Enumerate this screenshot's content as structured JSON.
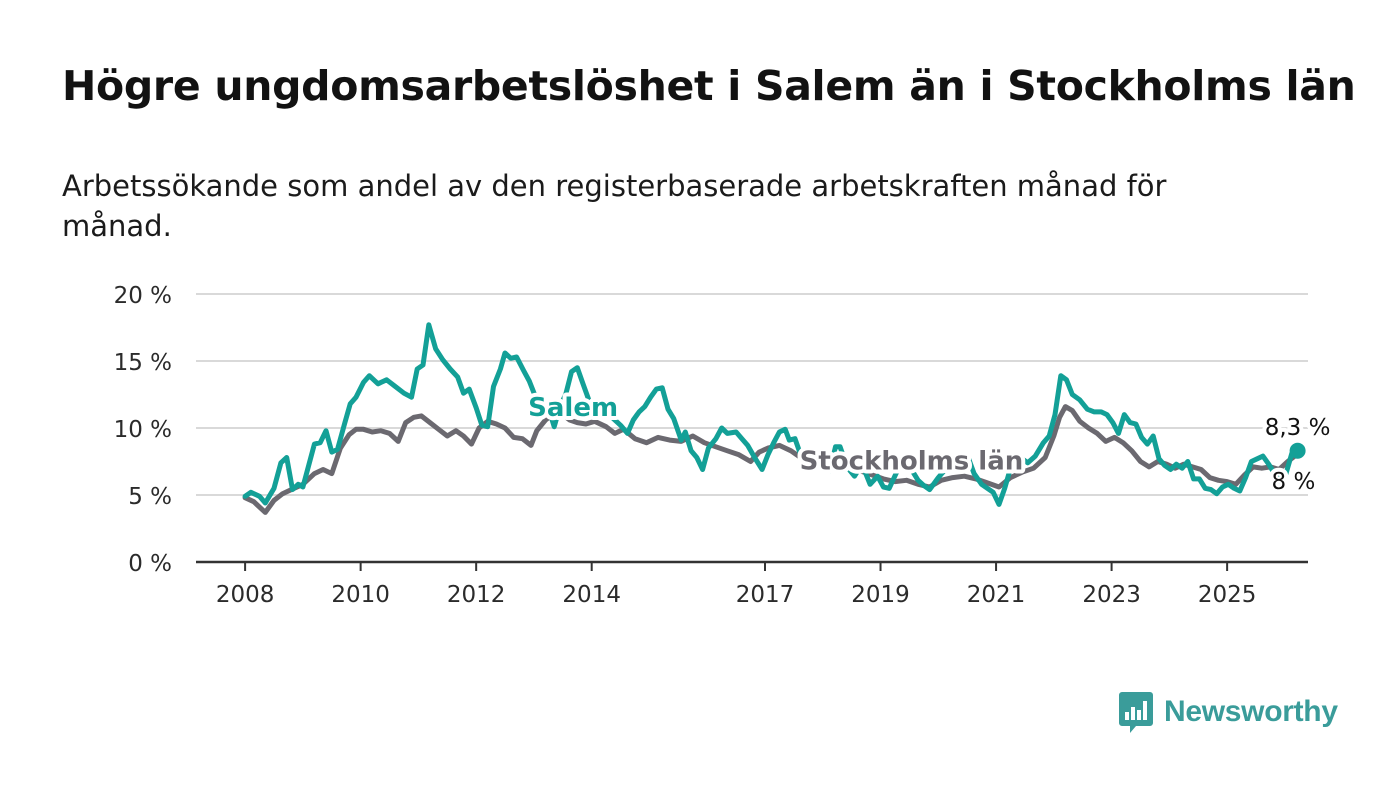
{
  "header": {
    "title": "Högre ungdomsarbetslöshet i Salem än i Stockholms län",
    "subtitle": "Arbetssökande som andel av den registerbaserade arbetskraften månad för månad."
  },
  "brand": {
    "name": "Newsworthy",
    "icon": "newsworthy-logo-icon",
    "color": "#3a9c9a"
  },
  "chart_data": {
    "type": "line",
    "x_unit": "year (decimal)",
    "xlim": [
      2007.15,
      2026.4
    ],
    "ylim": [
      0,
      20
    ],
    "yticks": [
      0,
      5,
      10,
      15,
      20
    ],
    "ytick_labels": [
      "0 %",
      "5 %",
      "10 %",
      "15 %",
      "20 %"
    ],
    "xticks": [
      2008,
      2010,
      2012,
      2014,
      2017,
      2019,
      2021,
      2023,
      2025
    ],
    "xtick_labels": [
      "2008",
      "2010",
      "2012",
      "2014",
      "2017",
      "2019",
      "2021",
      "2023",
      "2025"
    ],
    "grid": true,
    "end_labels": {
      "salem": "8,3 %",
      "stockholm": "8 %"
    },
    "series": [
      {
        "name": "Salem",
        "color": "#13a097",
        "label_x": 2012.9,
        "label_y": 10.9,
        "points": [
          [
            2008.0,
            4.9
          ],
          [
            2008.1,
            5.2
          ],
          [
            2008.25,
            4.9
          ],
          [
            2008.35,
            4.4
          ],
          [
            2008.5,
            5.5
          ],
          [
            2008.62,
            7.4
          ],
          [
            2008.72,
            7.8
          ],
          [
            2008.82,
            5.4
          ],
          [
            2008.92,
            5.8
          ],
          [
            2009.0,
            5.6
          ],
          [
            2009.2,
            8.8
          ],
          [
            2009.3,
            8.9
          ],
          [
            2009.4,
            9.8
          ],
          [
            2009.5,
            8.2
          ],
          [
            2009.6,
            8.4
          ],
          [
            2009.72,
            10.3
          ],
          [
            2009.82,
            11.8
          ],
          [
            2009.92,
            12.3
          ],
          [
            2010.05,
            13.4
          ],
          [
            2010.15,
            13.9
          ],
          [
            2010.3,
            13.3
          ],
          [
            2010.45,
            13.6
          ],
          [
            2010.6,
            13.1
          ],
          [
            2010.75,
            12.6
          ],
          [
            2010.88,
            12.3
          ],
          [
            2010.98,
            14.4
          ],
          [
            2011.08,
            14.7
          ],
          [
            2011.18,
            17.7
          ],
          [
            2011.3,
            15.9
          ],
          [
            2011.42,
            15.1
          ],
          [
            2011.55,
            14.4
          ],
          [
            2011.68,
            13.8
          ],
          [
            2011.78,
            12.6
          ],
          [
            2011.88,
            12.9
          ],
          [
            2012.0,
            11.5
          ],
          [
            2012.1,
            10.2
          ],
          [
            2012.2,
            10.1
          ],
          [
            2012.3,
            13.1
          ],
          [
            2012.42,
            14.4
          ],
          [
            2012.5,
            15.6
          ],
          [
            2012.6,
            15.2
          ],
          [
            2012.7,
            15.3
          ],
          [
            2012.82,
            14.3
          ],
          [
            2012.92,
            13.5
          ],
          [
            2013.02,
            12.4
          ],
          [
            2013.12,
            11.9
          ],
          [
            2013.25,
            11.5
          ],
          [
            2013.35,
            10.1
          ],
          [
            2013.45,
            11.6
          ],
          [
            2013.55,
            12.5
          ],
          [
            2013.65,
            14.2
          ],
          [
            2013.75,
            14.5
          ],
          [
            2013.85,
            13.3
          ],
          [
            2013.95,
            12.1
          ],
          [
            2014.05,
            11.5
          ],
          [
            2014.3,
            11.0
          ],
          [
            2014.5,
            10.2
          ],
          [
            2014.62,
            9.6
          ],
          [
            2014.72,
            10.6
          ],
          [
            2014.82,
            11.2
          ],
          [
            2014.92,
            11.6
          ],
          [
            2015.02,
            12.3
          ],
          [
            2015.12,
            12.9
          ],
          [
            2015.22,
            13.0
          ],
          [
            2015.32,
            11.4
          ],
          [
            2015.42,
            10.7
          ],
          [
            2015.55,
            9.1
          ],
          [
            2015.62,
            9.7
          ],
          [
            2015.72,
            8.3
          ],
          [
            2015.82,
            7.8
          ],
          [
            2015.92,
            6.9
          ],
          [
            2016.02,
            8.5
          ],
          [
            2016.15,
            9.2
          ],
          [
            2016.25,
            10.0
          ],
          [
            2016.35,
            9.6
          ],
          [
            2016.5,
            9.7
          ],
          [
            2016.6,
            9.2
          ],
          [
            2016.7,
            8.7
          ],
          [
            2016.82,
            7.8
          ],
          [
            2016.95,
            6.9
          ],
          [
            2017.05,
            8.0
          ],
          [
            2017.15,
            8.9
          ],
          [
            2017.25,
            9.7
          ],
          [
            2017.35,
            9.9
          ],
          [
            2017.42,
            9.1
          ],
          [
            2017.52,
            9.2
          ],
          [
            2017.6,
            8.2
          ],
          [
            2017.72,
            7.7
          ],
          [
            2017.82,
            7.4
          ],
          [
            2017.92,
            7.5
          ],
          [
            2018.02,
            7.0
          ],
          [
            2018.12,
            6.8
          ],
          [
            2018.22,
            8.6
          ],
          [
            2018.3,
            8.6
          ],
          [
            2018.42,
            7.1
          ],
          [
            2018.55,
            6.4
          ],
          [
            2018.68,
            7.3
          ],
          [
            2018.82,
            5.8
          ],
          [
            2018.95,
            6.4
          ],
          [
            2019.05,
            5.6
          ],
          [
            2019.15,
            5.5
          ],
          [
            2019.3,
            6.9
          ],
          [
            2019.42,
            7.5
          ],
          [
            2019.55,
            6.8
          ],
          [
            2019.65,
            6.1
          ],
          [
            2019.75,
            5.7
          ],
          [
            2019.85,
            5.4
          ],
          [
            2020.0,
            6.3
          ],
          [
            2020.1,
            6.8
          ],
          [
            2020.22,
            7.8
          ],
          [
            2020.35,
            7.5
          ],
          [
            2020.5,
            8.0
          ],
          [
            2020.62,
            6.6
          ],
          [
            2020.75,
            5.8
          ],
          [
            2020.85,
            5.5
          ],
          [
            2020.95,
            5.2
          ],
          [
            2021.05,
            4.3
          ],
          [
            2021.15,
            5.5
          ],
          [
            2021.25,
            7.0
          ],
          [
            2021.35,
            7.6
          ],
          [
            2021.45,
            7.7
          ],
          [
            2021.55,
            7.4
          ],
          [
            2021.68,
            7.9
          ],
          [
            2021.82,
            8.9
          ],
          [
            2021.92,
            9.4
          ],
          [
            2022.02,
            11.0
          ],
          [
            2022.12,
            13.9
          ],
          [
            2022.22,
            13.6
          ],
          [
            2022.32,
            12.5
          ],
          [
            2022.45,
            12.1
          ],
          [
            2022.58,
            11.4
          ],
          [
            2022.7,
            11.2
          ],
          [
            2022.82,
            11.2
          ],
          [
            2022.92,
            11.0
          ],
          [
            2023.02,
            10.4
          ],
          [
            2023.12,
            9.6
          ],
          [
            2023.22,
            11.0
          ],
          [
            2023.32,
            10.4
          ],
          [
            2023.42,
            10.3
          ],
          [
            2023.52,
            9.3
          ],
          [
            2023.62,
            8.8
          ],
          [
            2023.72,
            9.4
          ],
          [
            2023.82,
            7.7
          ],
          [
            2023.92,
            7.2
          ],
          [
            2024.02,
            6.9
          ],
          [
            2024.12,
            7.3
          ],
          [
            2024.22,
            7.0
          ],
          [
            2024.32,
            7.5
          ],
          [
            2024.42,
            6.2
          ],
          [
            2024.52,
            6.2
          ],
          [
            2024.62,
            5.5
          ],
          [
            2024.72,
            5.4
          ],
          [
            2024.82,
            5.1
          ],
          [
            2024.92,
            5.6
          ],
          [
            2025.02,
            5.8
          ],
          [
            2025.12,
            5.5
          ],
          [
            2025.22,
            5.3
          ],
          [
            2025.32,
            6.3
          ],
          [
            2025.42,
            7.5
          ],
          [
            2025.52,
            7.7
          ],
          [
            2025.62,
            7.9
          ],
          [
            2025.72,
            7.3
          ],
          [
            2025.82,
            6.6
          ],
          [
            2025.92,
            6.0
          ],
          [
            2026.02,
            6.6
          ],
          [
            2026.12,
            8.1
          ],
          [
            2026.22,
            8.3
          ]
        ]
      },
      {
        "name": "Stockholms län",
        "color": "#6b6970",
        "label_x": 2017.6,
        "label_y": 6.9,
        "points": [
          [
            2008.0,
            4.8
          ],
          [
            2008.15,
            4.5
          ],
          [
            2008.25,
            4.1
          ],
          [
            2008.35,
            3.7
          ],
          [
            2008.5,
            4.6
          ],
          [
            2008.65,
            5.1
          ],
          [
            2008.8,
            5.4
          ],
          [
            2009.0,
            5.8
          ],
          [
            2009.2,
            6.6
          ],
          [
            2009.35,
            6.9
          ],
          [
            2009.5,
            6.6
          ],
          [
            2009.65,
            8.5
          ],
          [
            2009.8,
            9.5
          ],
          [
            2009.92,
            9.9
          ],
          [
            2010.05,
            9.9
          ],
          [
            2010.2,
            9.7
          ],
          [
            2010.35,
            9.8
          ],
          [
            2010.5,
            9.6
          ],
          [
            2010.65,
            9.0
          ],
          [
            2010.78,
            10.4
          ],
          [
            2010.92,
            10.8
          ],
          [
            2011.05,
            10.9
          ],
          [
            2011.2,
            10.4
          ],
          [
            2011.35,
            9.9
          ],
          [
            2011.5,
            9.4
          ],
          [
            2011.65,
            9.8
          ],
          [
            2011.78,
            9.4
          ],
          [
            2011.92,
            8.8
          ],
          [
            2012.05,
            10.0
          ],
          [
            2012.2,
            10.5
          ],
          [
            2012.35,
            10.3
          ],
          [
            2012.5,
            10.0
          ],
          [
            2012.65,
            9.3
          ],
          [
            2012.8,
            9.2
          ],
          [
            2012.95,
            8.7
          ],
          [
            2013.05,
            9.8
          ],
          [
            2013.2,
            10.6
          ],
          [
            2013.35,
            11.1
          ],
          [
            2013.5,
            11.0
          ],
          [
            2013.62,
            10.6
          ],
          [
            2013.75,
            10.4
          ],
          [
            2013.9,
            10.3
          ],
          [
            2014.05,
            10.5
          ],
          [
            2014.25,
            10.1
          ],
          [
            2014.4,
            9.6
          ],
          [
            2014.55,
            9.9
          ],
          [
            2014.75,
            9.2
          ],
          [
            2014.95,
            8.9
          ],
          [
            2015.15,
            9.3
          ],
          [
            2015.35,
            9.1
          ],
          [
            2015.55,
            9.0
          ],
          [
            2015.75,
            9.4
          ],
          [
            2015.95,
            8.9
          ],
          [
            2016.15,
            8.6
          ],
          [
            2016.35,
            8.3
          ],
          [
            2016.55,
            8.0
          ],
          [
            2016.75,
            7.5
          ],
          [
            2016.9,
            8.2
          ],
          [
            2017.05,
            8.5
          ],
          [
            2017.25,
            8.7
          ],
          [
            2017.45,
            8.3
          ],
          [
            2017.65,
            7.7
          ],
          [
            2017.85,
            7.1
          ],
          [
            2018.05,
            7.3
          ],
          [
            2018.25,
            7.2
          ],
          [
            2018.45,
            7.0
          ],
          [
            2018.65,
            6.8
          ],
          [
            2018.85,
            6.5
          ],
          [
            2019.05,
            6.2
          ],
          [
            2019.25,
            6.0
          ],
          [
            2019.45,
            6.1
          ],
          [
            2019.65,
            5.8
          ],
          [
            2019.85,
            5.6
          ],
          [
            2020.05,
            6.1
          ],
          [
            2020.25,
            6.3
          ],
          [
            2020.45,
            6.4
          ],
          [
            2020.65,
            6.2
          ],
          [
            2020.85,
            5.9
          ],
          [
            2021.05,
            5.6
          ],
          [
            2021.25,
            6.3
          ],
          [
            2021.45,
            6.7
          ],
          [
            2021.65,
            7.0
          ],
          [
            2021.85,
            7.8
          ],
          [
            2022.0,
            9.4
          ],
          [
            2022.1,
            10.8
          ],
          [
            2022.2,
            11.6
          ],
          [
            2022.32,
            11.3
          ],
          [
            2022.45,
            10.5
          ],
          [
            2022.6,
            10.0
          ],
          [
            2022.75,
            9.6
          ],
          [
            2022.9,
            9.0
          ],
          [
            2023.05,
            9.3
          ],
          [
            2023.2,
            8.9
          ],
          [
            2023.35,
            8.3
          ],
          [
            2023.5,
            7.5
          ],
          [
            2023.65,
            7.1
          ],
          [
            2023.8,
            7.5
          ],
          [
            2023.95,
            7.3
          ],
          [
            2024.1,
            7.0
          ],
          [
            2024.25,
            7.3
          ],
          [
            2024.4,
            7.1
          ],
          [
            2024.55,
            6.9
          ],
          [
            2024.7,
            6.3
          ],
          [
            2024.85,
            6.1
          ],
          [
            2025.0,
            6.0
          ],
          [
            2025.15,
            5.8
          ],
          [
            2025.3,
            6.5
          ],
          [
            2025.45,
            7.1
          ],
          [
            2025.6,
            7.0
          ],
          [
            2025.75,
            7.1
          ],
          [
            2025.9,
            6.9
          ],
          [
            2026.05,
            7.5
          ],
          [
            2026.2,
            8.0
          ]
        ]
      }
    ]
  }
}
